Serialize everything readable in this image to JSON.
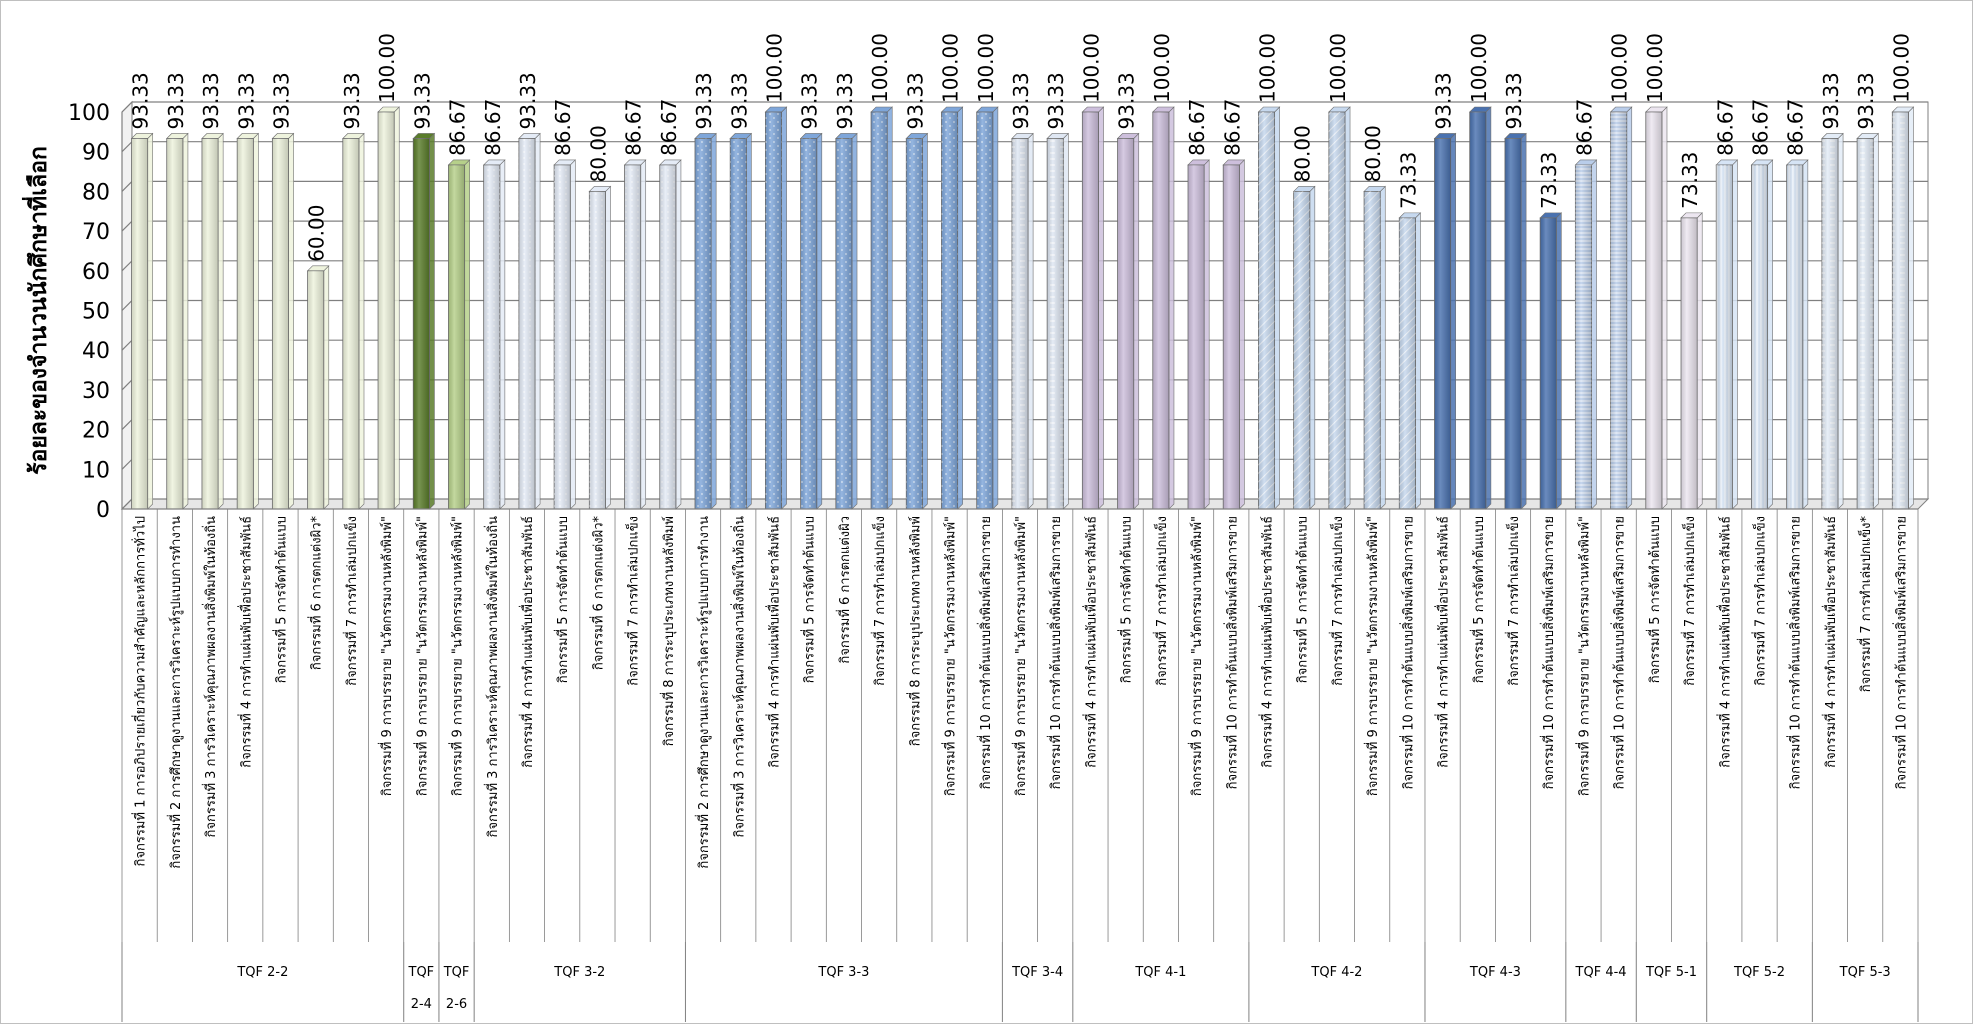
{
  "chart_data": {
    "type": "bar",
    "title": "",
    "xlabel": "",
    "ylabel": "ร้อยละของจำนวนนักศึกษาที่เลือก",
    "ylim": [
      0,
      100
    ],
    "ytick_labels": [
      "0",
      "10",
      "20",
      "30",
      "40",
      "50",
      "60",
      "70",
      "80",
      "90",
      "100"
    ],
    "grid": true,
    "legend": "none",
    "groups": [
      {
        "name": "TQF 2-2",
        "color": "#eef3dd",
        "pattern": "solid",
        "bars": [
          {
            "label": "กิจกรรมที่ 1 การอภิปรายเกี่ยวกับความสำคัญและหลักการทั่วไป",
            "value": 93.33,
            "value_label": "93.33"
          },
          {
            "label": "กิจกรรมที่ 2 การศึกษาดูงานและการวิเคราะห์รูปแบบการทำงาน",
            "value": 93.33,
            "value_label": "93.33"
          },
          {
            "label": "กิจกรรมที่ 3 การวิเคราะห์คุณภาพผลงานสิ่งพิมพ์ในท้องถิ่น",
            "value": 93.33,
            "value_label": "93.33"
          },
          {
            "label": "กิจกรรมที่ 4 การทำแผ่นพับเพื่อประชาสัมพันธ์",
            "value": 93.33,
            "value_label": "93.33"
          },
          {
            "label": "กิจกรรมที่ 5 การจัดทำต้นแบบ",
            "value": 93.33,
            "value_label": "93.33"
          },
          {
            "label": "กิจกรรมที่ 6 การตกแต่งผิว*",
            "value": 60.0,
            "value_label": "60.00"
          },
          {
            "label": "กิจกรรมที่ 7 การทำเล่มปกแข็ง",
            "value": 93.33,
            "value_label": "93.33"
          },
          {
            "label": "กิจกรรมที่ 9 การบรรยาย \"นวัตกรรมงานหลังพิมพ์\"",
            "value": 100.0,
            "value_label": "100.00"
          }
        ]
      },
      {
        "name": "TQF 2-4",
        "color": "#5a7d2a",
        "pattern": "solid",
        "bars": [
          {
            "label": "กิจกรรมที่ 9 การบรรยาย \"นวัตกรรมงานหลังพิมพ์\"",
            "value": 93.33,
            "value_label": "93.33"
          }
        ]
      },
      {
        "name": "TQF 2-6",
        "color": "#b6d08a",
        "pattern": "solid",
        "bars": [
          {
            "label": "กิจกรรมที่ 9 การบรรยาย \"นวัตกรรมงานหลังพิมพ์\"",
            "value": 86.67,
            "value_label": "86.67"
          }
        ]
      },
      {
        "name": "TQF 3-2",
        "color": "#e4ebf6",
        "pattern": "dots",
        "bars": [
          {
            "label": "กิจกรรมที่ 3 การวิเคราะห์คุณภาพผลงานสิ่งพิมพ์ในท้องถิ่น",
            "value": 86.67,
            "value_label": "86.67"
          },
          {
            "label": "กิจกรรมที่ 4 การทำแผ่นพับเพื่อประชาสัมพันธ์",
            "value": 93.33,
            "value_label": "93.33"
          },
          {
            "label": "กิจกรรมที่ 5 การจัดทำต้นแบบ",
            "value": 86.67,
            "value_label": "86.67"
          },
          {
            "label": "กิจกรรมที่ 6 การตกแต่งผิว*",
            "value": 80.0,
            "value_label": "80.00"
          },
          {
            "label": "กิจกรรมที่ 7 การทำเล่มปกแข็ง",
            "value": 86.67,
            "value_label": "86.67"
          },
          {
            "label": "กิจกรรมที่ 8 การระบุประเภทงานหลังพิมพ์",
            "value": 86.67,
            "value_label": "86.67"
          }
        ]
      },
      {
        "name": "TQF 3-3",
        "color": "#7ea6da",
        "pattern": "mixed",
        "bars": [
          {
            "label": "กิจกรรมที่ 2 การศึกษาดูงานและการวิเคราะห์รูปแบบการทำงาน",
            "value": 93.33,
            "value_label": "93.33"
          },
          {
            "label": "กิจกรรมที่ 3 การวิเคราะห์คุณภาพผลงานสิ่งพิมพ์ในท้องถิ่น",
            "value": 93.33,
            "value_label": "93.33"
          },
          {
            "label": "กิจกรรมที่ 4 การทำแผ่นพับเพื่อประชาสัมพันธ์",
            "value": 100.0,
            "value_label": "100.00"
          },
          {
            "label": "กิจกรรมที่ 5 การจัดทำต้นแบบ",
            "value": 93.33,
            "value_label": "93.33"
          },
          {
            "label": "กิจกรรมที่ 6 การตกแต่งผิว",
            "value": 93.33,
            "value_label": "93.33"
          },
          {
            "label": "กิจกรรมที่ 7 การทำเล่มปกแข็ง",
            "value": 100.0,
            "value_label": "100.00"
          },
          {
            "label": "กิจกรรมที่ 8 การระบุประเภทงานหลังพิมพ์",
            "value": 93.33,
            "value_label": "93.33"
          },
          {
            "label": "กิจกรรมที่ 9 การบรรยาย \"นวัตกรรมงานหลังพิมพ์\"",
            "value": 100.0,
            "value_label": "100.00"
          },
          {
            "label": "กิจกรรมที่ 10 การทำต้นแบบสิ่งพิมพ์เสริมการขาย",
            "value": 100.0,
            "value_label": "100.00"
          }
        ]
      },
      {
        "name": "TQF 3-4",
        "color": "#dfe7f3",
        "pattern": "dash",
        "bars": [
          {
            "label": "กิจกรรมที่ 9 การบรรยาย \"นวัตกรรมงานหลังพิมพ์\"",
            "value": 93.33,
            "value_label": "93.33"
          },
          {
            "label": "กิจกรรมที่ 10 การทำต้นแบบสิ่งพิมพ์เสริมการขาย",
            "value": 93.33,
            "value_label": "93.33"
          }
        ]
      },
      {
        "name": "TQF 4-1",
        "color": "#cdbfdc",
        "pattern": "solid",
        "bars": [
          {
            "label": "กิจกรรมที่ 4 การทำแผ่นพับเพื่อประชาสัมพันธ์",
            "value": 100.0,
            "value_label": "100.00"
          },
          {
            "label": "กิจกรรมที่ 5 การจัดทำต้นแบบ",
            "value": 93.33,
            "value_label": "93.33"
          },
          {
            "label": "กิจกรรมที่ 7 การทำเล่มปกแข็ง",
            "value": 100.0,
            "value_label": "100.00"
          },
          {
            "label": "กิจกรรมที่ 9 การบรรยาย \"นวัตกรรมงานหลังพิมพ์\"",
            "value": 86.67,
            "value_label": "86.67"
          },
          {
            "label": "กิจกรรมที่ 10 การทำต้นแบบสิ่งพิมพ์เสริมการขาย",
            "value": 86.67,
            "value_label": "86.67"
          }
        ]
      },
      {
        "name": "TQF 4-2",
        "color": "#c6d8ee",
        "pattern": "diag",
        "bars": [
          {
            "label": "กิจกรรมที่ 4 การทำแผ่นพับเพื่อประชาสัมพันธ์",
            "value": 100.0,
            "value_label": "100.00"
          },
          {
            "label": "กิจกรรมที่ 5 การจัดทำต้นแบบ",
            "value": 80.0,
            "value_label": "80.00"
          },
          {
            "label": "กิจกรรมที่ 7 การทำเล่มปกแข็ง",
            "value": 100.0,
            "value_label": "100.00"
          },
          {
            "label": "กิจกรรมที่ 9 การบรรยาย \"นวัตกรรมงานหลังพิมพ์\"",
            "value": 80.0,
            "value_label": "80.00"
          },
          {
            "label": "กิจกรรมที่ 10 การทำต้นแบบสิ่งพิมพ์เสริมการขาย",
            "value": 73.33,
            "value_label": "73.33"
          }
        ]
      },
      {
        "name": "TQF 4-3",
        "color": "#4a72b0",
        "pattern": "solid",
        "bars": [
          {
            "label": "กิจกรรมที่ 4 การทำแผ่นพับเพื่อประชาสัมพันธ์",
            "value": 93.33,
            "value_label": "93.33"
          },
          {
            "label": "กิจกรรมที่ 5 การจัดทำต้นแบบ",
            "value": 100.0,
            "value_label": "100.00"
          },
          {
            "label": "กิจกรรมที่ 7 การทำเล่มปกแข็ง",
            "value": 93.33,
            "value_label": "93.33"
          },
          {
            "label": "กิจกรรมที่ 10 การทำต้นแบบสิ่งพิมพ์เสริมการขาย",
            "value": 73.33,
            "value_label": "73.33"
          }
        ]
      },
      {
        "name": "TQF 4-4",
        "color": "#b9cdea",
        "pattern": "hlines",
        "bars": [
          {
            "label": "กิจกรรมที่ 9 การบรรยาย \"นวัตกรรมงานหลังพิมพ์\"",
            "value": 86.67,
            "value_label": "86.67"
          },
          {
            "label": "กิจกรรมที่ 10 การทำต้นแบบสิ่งพิมพ์เสริมการขาย",
            "value": 100.0,
            "value_label": "100.00"
          }
        ]
      },
      {
        "name": "TQF 5-1",
        "color": "#ece6f0",
        "pattern": "solid",
        "bars": [
          {
            "label": "กิจกรรมที่ 5 การจัดทำต้นแบบ",
            "value": 100.0,
            "value_label": "100.00"
          },
          {
            "label": "กิจกรรมที่ 7 การทำเล่มปกแข็ง",
            "value": 73.33,
            "value_label": "73.33"
          }
        ]
      },
      {
        "name": "TQF 5-2",
        "color": "#d6e4f5",
        "pattern": "vlines",
        "bars": [
          {
            "label": "กิจกรรมที่ 4 การทำแผ่นพับเพื่อประชาสัมพันธ์",
            "value": 86.67,
            "value_label": "86.67"
          },
          {
            "label": "กิจกรรมที่ 7 การทำเล่มปกแข็ง",
            "value": 86.67,
            "value_label": "86.67"
          },
          {
            "label": "กิจกรรมที่ 10 การทำต้นแบบสิ่งพิมพ์เสริมการขาย",
            "value": 86.67,
            "value_label": "86.67"
          }
        ]
      },
      {
        "name": "TQF 5-3",
        "color": "#e3ecf7",
        "pattern": "dash",
        "bars": [
          {
            "label": "กิจกรรมที่ 4 การทำแผ่นพับเพื่อประชาสัมพันธ์",
            "value": 93.33,
            "value_label": "93.33"
          },
          {
            "label": "กิจกรรมที่ 7 การทำเล่มปกแข็ง*",
            "value": 93.33,
            "value_label": "93.33"
          },
          {
            "label": "กิจกรรมที่ 10 การทำต้นแบบสิ่งพิมพ์เสริมการขาย",
            "value": 100.0,
            "value_label": "100.00"
          }
        ]
      }
    ]
  }
}
